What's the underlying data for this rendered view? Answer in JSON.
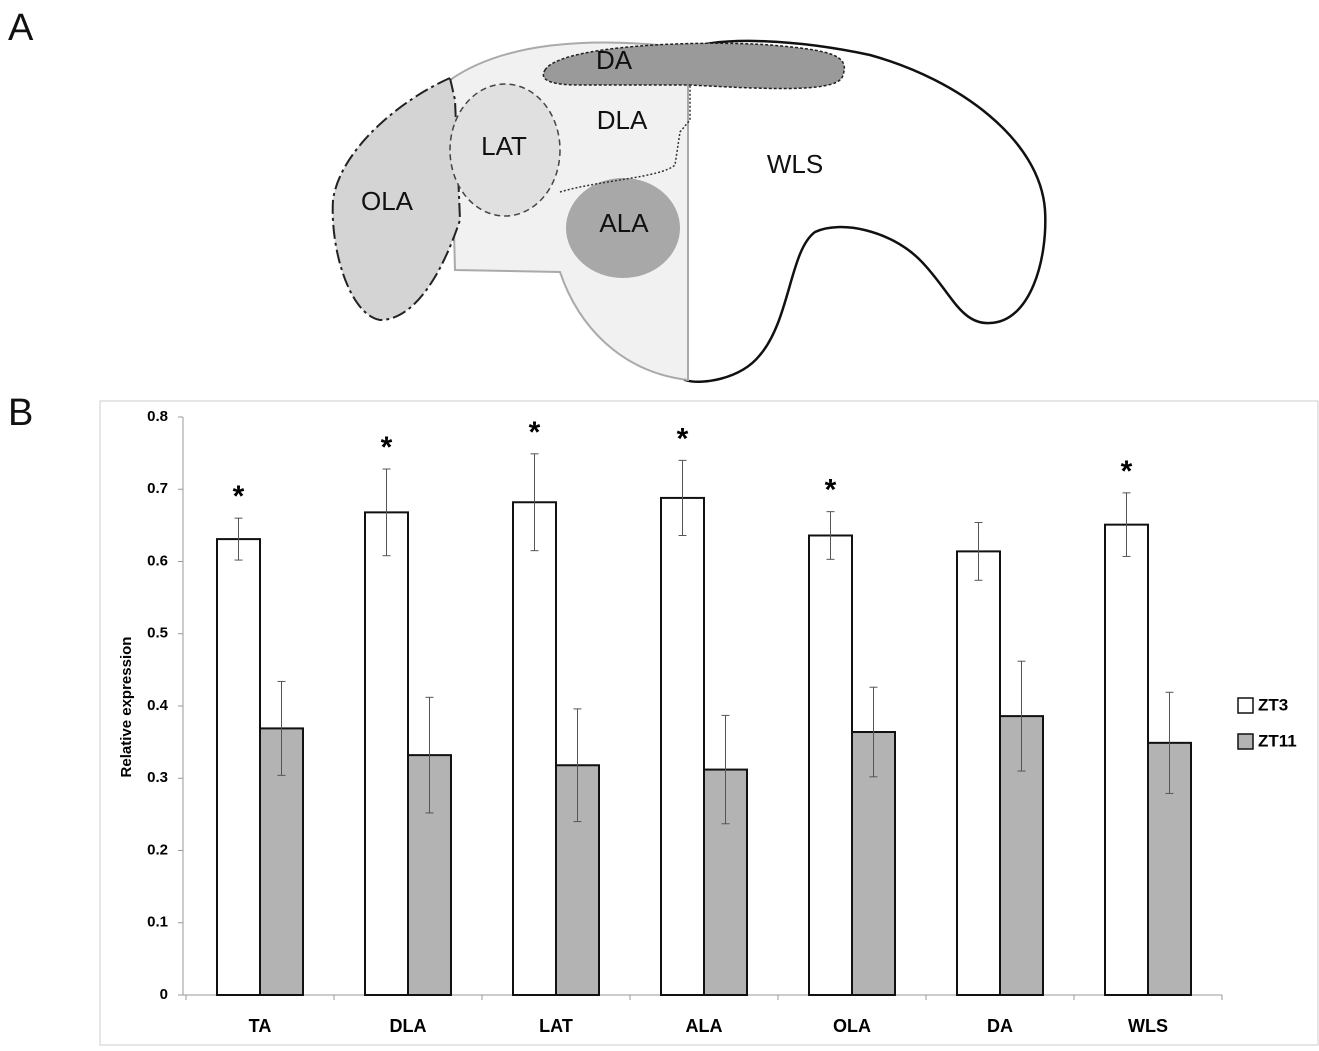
{
  "panel_labels": [
    "A",
    "B"
  ],
  "diagram": {
    "labels": [
      "DA",
      "DLA",
      "LAT",
      "WLS",
      "OLA",
      "ALA"
    ]
  },
  "chart_data": {
    "type": "bar",
    "categories": [
      "TA",
      "DLA",
      "LAT",
      "ALA",
      "OLA",
      "DA",
      "WLS"
    ],
    "series": [
      {
        "name": "ZT3",
        "color": "#ffffff",
        "values": [
          0.631,
          0.668,
          0.682,
          0.688,
          0.636,
          0.614,
          0.651
        ],
        "errors": [
          0.029,
          0.06,
          0.067,
          0.052,
          0.033,
          0.04,
          0.044
        ]
      },
      {
        "name": "ZT11",
        "color": "#b3b3b3",
        "values": [
          0.369,
          0.332,
          0.318,
          0.312,
          0.364,
          0.386,
          0.349
        ],
        "errors": [
          0.065,
          0.08,
          0.078,
          0.075,
          0.062,
          0.076,
          0.07
        ]
      }
    ],
    "annotations": [
      "*",
      "*",
      "*",
      "*",
      "*",
      null,
      "*"
    ],
    "ylabel": "Relative expression",
    "ylim": [
      0,
      0.8
    ],
    "yticks": [
      0,
      0.1,
      0.2,
      0.3,
      0.4,
      0.5,
      0.6,
      0.7,
      0.8
    ],
    "grid": false,
    "legend": "right"
  }
}
